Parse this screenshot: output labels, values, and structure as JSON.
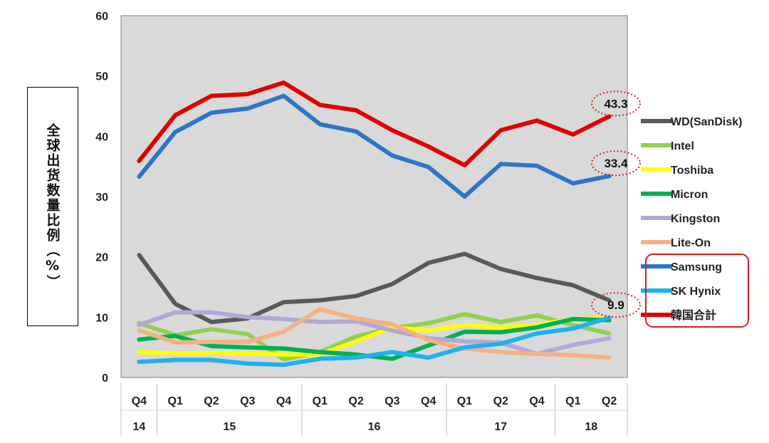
{
  "chart_data": {
    "type": "line",
    "ylabel": "全球出货数量比例（%）",
    "ylim": [
      0,
      60
    ],
    "yticks": [
      0,
      10,
      20,
      30,
      40,
      50,
      60
    ],
    "grid": false,
    "legend_position": "right",
    "categories": [
      "Q4",
      "Q1",
      "Q2",
      "Q3",
      "Q4",
      "Q1",
      "Q2",
      "Q3",
      "Q4",
      "Q1",
      "Q2",
      "Q4",
      "Q1",
      "Q2"
    ],
    "year_groups": [
      {
        "label": "14",
        "start": 0,
        "end": 0
      },
      {
        "label": "15",
        "start": 1,
        "end": 4
      },
      {
        "label": "16",
        "start": 5,
        "end": 8
      },
      {
        "label": "17",
        "start": 9,
        "end": 11
      },
      {
        "label": "18",
        "start": 12,
        "end": 13
      }
    ],
    "series": [
      {
        "name": "WD(SanDisk)",
        "color": "#595959",
        "values": [
          20.3,
          12.2,
          9.2,
          9.8,
          12.5,
          12.8,
          13.5,
          15.5,
          19.0,
          20.5,
          18.0,
          16.5,
          15.3,
          12.8
        ]
      },
      {
        "name": "Intel",
        "color": "#92d050",
        "values": [
          9.0,
          7.0,
          8.0,
          7.2,
          3.0,
          4.2,
          6.8,
          8.2,
          9.0,
          10.5,
          9.2,
          10.3,
          8.7,
          7.3
        ]
      },
      {
        "name": "Toshiba",
        "color": "#ffff00",
        "values": [
          4.2,
          4.0,
          4.0,
          4.0,
          3.8,
          3.8,
          6.0,
          8.3,
          7.8,
          8.7,
          8.3,
          8.7,
          9.7,
          9.8
        ]
      },
      {
        "name": "Micron",
        "color": "#00b050",
        "values": [
          6.3,
          6.9,
          5.2,
          5.0,
          4.8,
          4.2,
          3.8,
          3.1,
          5.3,
          7.6,
          7.5,
          8.3,
          9.7,
          9.5
        ]
      },
      {
        "name": "Kingston",
        "color": "#b4a7d6",
        "values": [
          8.7,
          10.8,
          10.8,
          10.0,
          9.7,
          9.2,
          9.3,
          7.8,
          6.5,
          6.0,
          5.8,
          3.9,
          5.4,
          6.5
        ]
      },
      {
        "name": "Lite-On",
        "color": "#f4b183",
        "values": [
          7.8,
          5.8,
          5.9,
          5.9,
          7.6,
          11.3,
          9.8,
          8.8,
          6.2,
          4.8,
          4.2,
          3.9,
          3.7,
          3.3
        ]
      },
      {
        "name": "Samsung",
        "color": "#2f75c8",
        "values": [
          33.3,
          40.7,
          43.9,
          44.6,
          46.7,
          42.0,
          40.8,
          36.8,
          34.9,
          30.0,
          35.4,
          35.1,
          32.2,
          33.4
        ]
      },
      {
        "name": "SK Hynix",
        "color": "#1fb1ee",
        "values": [
          2.6,
          2.9,
          2.9,
          2.3,
          2.1,
          3.1,
          3.3,
          4.2,
          3.3,
          5.0,
          5.6,
          7.3,
          8.1,
          9.9
        ]
      },
      {
        "name": "韓国合計",
        "color": "#e00000",
        "values": [
          35.9,
          43.5,
          46.7,
          47.0,
          48.9,
          45.2,
          44.3,
          41.0,
          38.3,
          35.2,
          41.0,
          42.6,
          40.3,
          43.3
        ]
      }
    ],
    "highlighted_legend": [
      "Samsung",
      "SK Hynix",
      "韓国合計"
    ],
    "highlight_color": "#d21f1f",
    "callouts": [
      {
        "label": "43.3",
        "series": "韓国合計"
      },
      {
        "label": "33.4",
        "series": "Samsung"
      },
      {
        "label": "9.9",
        "series": "SK Hynix"
      }
    ]
  }
}
